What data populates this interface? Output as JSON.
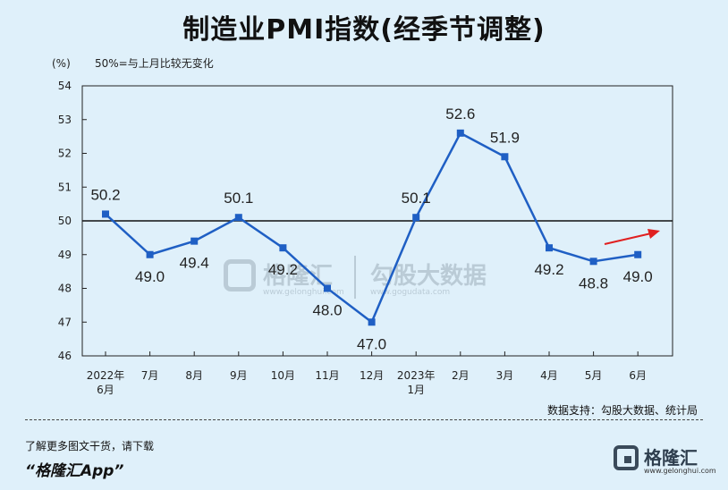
{
  "header": {
    "title": "制造业PMI指数(经季节调整)",
    "unit": "(%)",
    "note": "50%=与上月比较无变化"
  },
  "source": "数据支持：勾股大数据、统计局",
  "promo": {
    "line1": "了解更多图文干货，请下载",
    "line2": "“格隆汇App”"
  },
  "brand": {
    "name": "格隆汇",
    "url": "www.gelonghui.com"
  },
  "watermark": {
    "name": "格隆汇",
    "url": "www.gelonghui.com",
    "name2": "勾股大数据",
    "url2": "www.gogudata.com"
  },
  "colors": {
    "series": "#1f5fc4",
    "reference_line": "#111111",
    "arrow": "#e02020",
    "background": "#dff0fa"
  },
  "chart_data": {
    "type": "line",
    "title": "制造业PMI指数(经季节调整)",
    "ylabel": "(%)",
    "ylim": [
      46,
      54
    ],
    "yticks": [
      46,
      47,
      48,
      49,
      50,
      51,
      52,
      53,
      54
    ],
    "reference_line": 50,
    "grid": false,
    "categories": [
      [
        "2022年",
        "6月"
      ],
      [
        "7月"
      ],
      [
        "8月"
      ],
      [
        "9月"
      ],
      [
        "10月"
      ],
      [
        "11月"
      ],
      [
        "12月"
      ],
      [
        "2023年",
        "1月"
      ],
      [
        "2月"
      ],
      [
        "3月"
      ],
      [
        "4月"
      ],
      [
        "5月"
      ],
      [
        "6月"
      ]
    ],
    "series": [
      {
        "values": [
          50.2,
          49.0,
          49.4,
          50.1,
          49.2,
          48.0,
          47.0,
          50.1,
          52.6,
          51.9,
          49.2,
          48.8,
          49.0
        ],
        "labels": [
          "50.2",
          "49.0",
          "49.4",
          "50.1",
          "49.2",
          "48.0",
          "47.0",
          "50.1",
          "52.6",
          "51.9",
          "49.2",
          "48.8",
          "49.0"
        ]
      }
    ]
  }
}
